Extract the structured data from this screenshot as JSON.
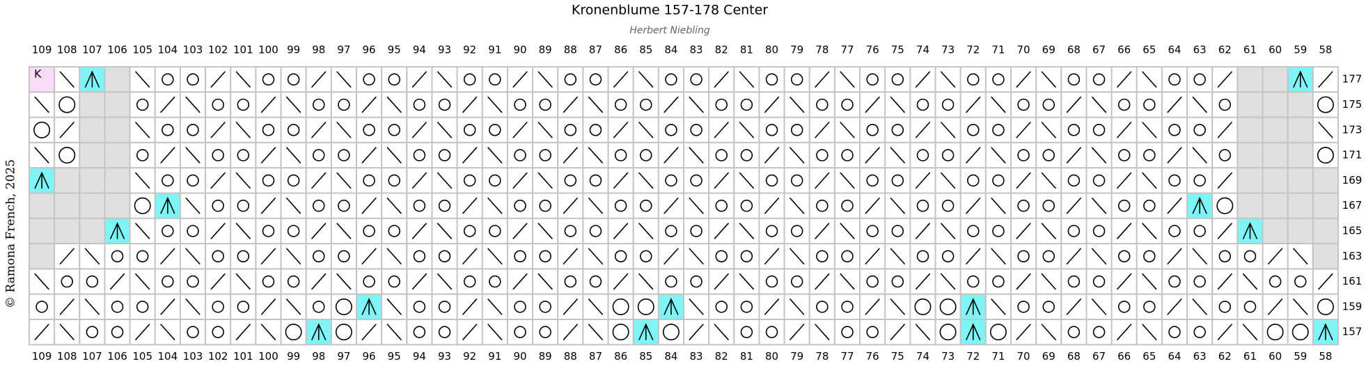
{
  "header": {
    "title": "Kronenblume 157-178 Center",
    "subtitle": "Herbert Niebling"
  },
  "copyright": "© Ramona French, 2025",
  "columns": [
    109,
    108,
    107,
    106,
    105,
    104,
    103,
    102,
    101,
    100,
    99,
    98,
    97,
    96,
    95,
    94,
    93,
    92,
    91,
    90,
    89,
    88,
    87,
    86,
    85,
    84,
    83,
    82,
    81,
    80,
    79,
    78,
    77,
    76,
    75,
    74,
    73,
    72,
    71,
    70,
    69,
    68,
    67,
    66,
    65,
    64,
    63,
    62,
    61,
    60,
    59,
    58
  ],
  "rows": [
    {
      "label": 177,
      "cells": [
        "K",
        "\\",
        "^",
        "x",
        "\\",
        "o",
        "o",
        "/",
        "\\",
        "o",
        "o",
        "/",
        "\\",
        "o",
        "o",
        "/",
        "\\",
        "o",
        "o",
        "/",
        "\\",
        "o",
        "o",
        "/",
        "\\",
        "o",
        "o",
        "/",
        "\\",
        "o",
        "o",
        "/",
        "\\",
        "o",
        "o",
        "/",
        "\\",
        "o",
        "o",
        "/",
        "\\",
        "o",
        "o",
        "/",
        "\\",
        "o",
        "o",
        "/",
        "x",
        "x",
        "^",
        "/"
      ]
    },
    {
      "label": 175,
      "cells": [
        "\\",
        "O",
        "x",
        "x",
        "o",
        "/",
        "\\",
        "o",
        "o",
        "/",
        "\\",
        "o",
        "o",
        "/",
        "\\",
        "o",
        "o",
        "/",
        "\\",
        "o",
        "o",
        "/",
        "\\",
        "o",
        "o",
        "/",
        "\\",
        "o",
        "o",
        "/",
        "\\",
        "o",
        "o",
        "/",
        "\\",
        "o",
        "o",
        "/",
        "\\",
        "o",
        "o",
        "/",
        "\\",
        "o",
        "o",
        "/",
        "\\",
        "o",
        "x",
        "x",
        "x",
        "O"
      ]
    },
    {
      "label": 173,
      "cells": [
        "O",
        "/",
        "x",
        "x",
        "\\",
        "o",
        "o",
        "/",
        "\\",
        "o",
        "o",
        "/",
        "\\",
        "o",
        "o",
        "/",
        "\\",
        "o",
        "o",
        "/",
        "\\",
        "o",
        "o",
        "/",
        "\\",
        "o",
        "o",
        "/",
        "\\",
        "o",
        "o",
        "/",
        "\\",
        "o",
        "o",
        "/",
        "\\",
        "o",
        "o",
        "/",
        "\\",
        "o",
        "o",
        "/",
        "\\",
        "o",
        "o",
        "/",
        "x",
        "x",
        "x",
        "\\"
      ]
    },
    {
      "label": 171,
      "cells": [
        "\\",
        "O",
        "x",
        "x",
        "o",
        "/",
        "\\",
        "o",
        "o",
        "/",
        "\\",
        "o",
        "o",
        "/",
        "\\",
        "o",
        "o",
        "/",
        "\\",
        "o",
        "o",
        "/",
        "\\",
        "o",
        "o",
        "/",
        "\\",
        "o",
        "o",
        "/",
        "\\",
        "o",
        "o",
        "/",
        "\\",
        "o",
        "o",
        "/",
        "\\",
        "o",
        "o",
        "/",
        "\\",
        "o",
        "o",
        "/",
        "\\",
        "o",
        "x",
        "x",
        "x",
        "O"
      ]
    },
    {
      "label": 169,
      "cells": [
        "^",
        "x",
        "x",
        "x",
        "\\",
        "o",
        "o",
        "/",
        "\\",
        "o",
        "o",
        "/",
        "\\",
        "o",
        "o",
        "/",
        "\\",
        "o",
        "o",
        "/",
        "\\",
        "o",
        "o",
        "/",
        "\\",
        "o",
        "o",
        "/",
        "\\",
        "o",
        "o",
        "/",
        "\\",
        "o",
        "o",
        "/",
        "\\",
        "o",
        "o",
        "/",
        "\\",
        "o",
        "o",
        "/",
        "\\",
        "o",
        "o",
        "/",
        "x",
        "x",
        "x",
        "x"
      ]
    },
    {
      "label": 167,
      "cells": [
        "x",
        "x",
        "x",
        "x",
        "O",
        "^",
        "\\",
        "o",
        "o",
        "/",
        "\\",
        "o",
        "o",
        "/",
        "\\",
        "o",
        "o",
        "/",
        "\\",
        "o",
        "o",
        "/",
        "\\",
        "o",
        "o",
        "/",
        "\\",
        "o",
        "o",
        "/",
        "\\",
        "o",
        "o",
        "/",
        "\\",
        "o",
        "o",
        "/",
        "\\",
        "o",
        "o",
        "/",
        "\\",
        "o",
        "o",
        "/",
        "^",
        "O",
        "x",
        "x",
        "x",
        "x"
      ]
    },
    {
      "label": 165,
      "cells": [
        "x",
        "x",
        "x",
        "^",
        "\\",
        "o",
        "o",
        "/",
        "\\",
        "o",
        "o",
        "/",
        "\\",
        "o",
        "o",
        "/",
        "\\",
        "o",
        "o",
        "/",
        "\\",
        "o",
        "o",
        "/",
        "\\",
        "o",
        "o",
        "/",
        "\\",
        "o",
        "o",
        "/",
        "\\",
        "o",
        "o",
        "/",
        "\\",
        "o",
        "o",
        "/",
        "\\",
        "o",
        "o",
        "/",
        "\\",
        "o",
        "o",
        "/",
        "^",
        "x",
        "x",
        "x"
      ]
    },
    {
      "label": 163,
      "cells": [
        "x",
        "/",
        "\\",
        "o",
        "o",
        "/",
        "\\",
        "o",
        "o",
        "/",
        "\\",
        "o",
        "o",
        "/",
        "\\",
        "o",
        "o",
        "/",
        "\\",
        "o",
        "o",
        "/",
        "\\",
        "o",
        "o",
        "/",
        "\\",
        "o",
        "o",
        "/",
        "\\",
        "o",
        "o",
        "/",
        "\\",
        "o",
        "o",
        "/",
        "\\",
        "o",
        "o",
        "/",
        "\\",
        "o",
        "o",
        "/",
        "\\",
        "o",
        "o",
        "/",
        "\\",
        "x"
      ]
    },
    {
      "label": 161,
      "cells": [
        "\\",
        "o",
        "o",
        "/",
        "\\",
        "o",
        "o",
        "/",
        "\\",
        "o",
        "o",
        "/",
        "\\",
        "o",
        "o",
        "/",
        "\\",
        "o",
        "o",
        "/",
        "\\",
        "o",
        "o",
        "/",
        "\\",
        "o",
        "o",
        "/",
        "\\",
        "o",
        "o",
        "/",
        "\\",
        "o",
        "o",
        "/",
        "\\",
        "o",
        "o",
        "/",
        "\\",
        "o",
        "o",
        "/",
        "\\",
        "o",
        "o",
        "/",
        "\\",
        "o",
        "o",
        "/"
      ]
    },
    {
      "label": 159,
      "cells": [
        "o",
        "/",
        "\\",
        "o",
        "o",
        "/",
        "\\",
        "o",
        "o",
        "/",
        "\\",
        "o",
        "O",
        "^",
        "\\",
        "o",
        "o",
        "/",
        "\\",
        "o",
        "o",
        "/",
        "\\",
        "O",
        "O",
        "^",
        "\\",
        "o",
        "o",
        "/",
        "\\",
        "o",
        "o",
        "/",
        "\\",
        "O",
        "O",
        "^",
        "\\",
        "o",
        "o",
        "/",
        "\\",
        "o",
        "o",
        "/",
        "\\",
        "o",
        "o",
        "/",
        "\\",
        "O"
      ]
    },
    {
      "label": 157,
      "cells": [
        "/",
        "\\",
        "o",
        "o",
        "/",
        "\\",
        "o",
        "o",
        "/",
        "\\",
        "O",
        "^",
        "O",
        "/",
        "\\",
        "o",
        "o",
        "/",
        "\\",
        "o",
        "o",
        "/",
        "\\",
        "O",
        "^",
        "O",
        "/",
        "\\",
        "o",
        "o",
        "/",
        "\\",
        "o",
        "o",
        "/",
        "\\",
        "O",
        "^",
        "O",
        "/",
        "\\",
        "o",
        "o",
        "/",
        "\\",
        "o",
        "o",
        "/",
        "\\",
        "O",
        "O",
        "^"
      ]
    }
  ]
}
